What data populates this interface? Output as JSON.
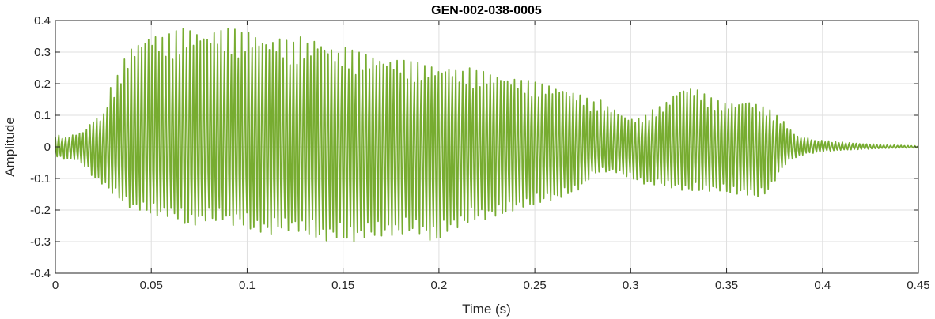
{
  "chart_data": {
    "type": "line",
    "title": "GEN-002-038-0005",
    "xlabel": "Time (s)",
    "ylabel": "Amplitude",
    "xlim": [
      0,
      0.45
    ],
    "ylim": [
      -0.4,
      0.4
    ],
    "grid": true,
    "line_color": "#77AC30",
    "xticks": [
      0,
      0.05,
      0.1,
      0.15,
      0.2,
      0.25,
      0.3,
      0.35,
      0.4,
      0.45
    ],
    "xtick_labels": [
      "0",
      "0.05",
      "0.1",
      "0.15",
      "0.2",
      "0.25",
      "0.3",
      "0.35",
      "0.4",
      "0.45"
    ],
    "yticks": [
      -0.4,
      -0.3,
      -0.2,
      -0.1,
      0,
      0.1,
      0.2,
      0.3,
      0.4
    ],
    "ytick_labels": [
      "-0.4",
      "-0.3",
      "-0.2",
      "-0.1",
      "0",
      "0.1",
      "0.2",
      "0.3",
      "0.4"
    ],
    "series": [
      {
        "x": [
          0.0,
          0.005,
          0.01,
          0.015,
          0.02,
          0.025,
          0.028,
          0.032,
          0.036,
          0.04,
          0.044,
          0.048,
          0.052,
          0.056,
          0.06,
          0.064,
          0.068,
          0.072,
          0.076,
          0.08,
          0.084,
          0.088,
          0.092,
          0.096,
          0.1,
          0.104,
          0.108,
          0.112,
          0.116,
          0.12,
          0.124,
          0.128,
          0.132,
          0.136,
          0.14,
          0.144,
          0.148,
          0.152,
          0.156,
          0.16,
          0.164,
          0.168,
          0.172,
          0.176,
          0.18,
          0.184,
          0.188,
          0.192,
          0.196,
          0.2,
          0.204,
          0.208,
          0.212,
          0.216,
          0.22,
          0.224,
          0.228,
          0.232,
          0.236,
          0.24,
          0.244,
          0.248,
          0.252,
          0.256,
          0.26,
          0.264,
          0.268,
          0.272,
          0.276,
          0.28,
          0.284,
          0.288,
          0.292,
          0.296,
          0.3,
          0.304,
          0.308,
          0.312,
          0.316,
          0.32,
          0.324,
          0.328,
          0.332,
          0.336,
          0.34,
          0.344,
          0.348,
          0.352,
          0.356,
          0.36,
          0.364,
          0.368,
          0.372,
          0.376,
          0.38,
          0.384,
          0.388,
          0.392,
          0.396,
          0.4,
          0.41,
          0.42,
          0.43,
          0.44,
          0.45
        ],
        "y_max": [
          0.04,
          0.03,
          0.04,
          0.05,
          0.09,
          0.1,
          0.18,
          0.22,
          0.28,
          0.32,
          0.34,
          0.36,
          0.36,
          0.35,
          0.36,
          0.37,
          0.38,
          0.37,
          0.37,
          0.36,
          0.38,
          0.37,
          0.38,
          0.36,
          0.37,
          0.36,
          0.35,
          0.34,
          0.35,
          0.34,
          0.33,
          0.35,
          0.33,
          0.35,
          0.33,
          0.32,
          0.3,
          0.32,
          0.3,
          0.3,
          0.29,
          0.29,
          0.28,
          0.28,
          0.28,
          0.27,
          0.27,
          0.26,
          0.26,
          0.25,
          0.26,
          0.25,
          0.24,
          0.25,
          0.24,
          0.24,
          0.23,
          0.23,
          0.22,
          0.22,
          0.21,
          0.21,
          0.2,
          0.2,
          0.19,
          0.19,
          0.18,
          0.17,
          0.16,
          0.14,
          0.15,
          0.13,
          0.12,
          0.1,
          0.09,
          0.09,
          0.1,
          0.12,
          0.13,
          0.15,
          0.18,
          0.19,
          0.19,
          0.18,
          0.16,
          0.15,
          0.14,
          0.14,
          0.14,
          0.15,
          0.14,
          0.13,
          0.12,
          0.1,
          0.08,
          0.05,
          0.03,
          0.03,
          0.02,
          0.02,
          0.015,
          0.01,
          0.008,
          0.005,
          0.003
        ],
        "y_min": [
          -0.03,
          -0.04,
          -0.04,
          -0.06,
          -0.1,
          -0.12,
          -0.14,
          -0.16,
          -0.18,
          -0.2,
          -0.2,
          -0.21,
          -0.22,
          -0.22,
          -0.22,
          -0.23,
          -0.25,
          -0.25,
          -0.24,
          -0.23,
          -0.24,
          -0.23,
          -0.25,
          -0.24,
          -0.26,
          -0.27,
          -0.27,
          -0.28,
          -0.26,
          -0.27,
          -0.26,
          -0.27,
          -0.28,
          -0.29,
          -0.3,
          -0.29,
          -0.29,
          -0.3,
          -0.3,
          -0.29,
          -0.28,
          -0.29,
          -0.28,
          -0.28,
          -0.28,
          -0.27,
          -0.27,
          -0.28,
          -0.3,
          -0.3,
          -0.27,
          -0.26,
          -0.25,
          -0.24,
          -0.23,
          -0.23,
          -0.22,
          -0.22,
          -0.21,
          -0.2,
          -0.19,
          -0.19,
          -0.18,
          -0.17,
          -0.17,
          -0.16,
          -0.15,
          -0.14,
          -0.12,
          -0.09,
          -0.08,
          -0.08,
          -0.08,
          -0.09,
          -0.1,
          -0.11,
          -0.12,
          -0.12,
          -0.12,
          -0.13,
          -0.13,
          -0.14,
          -0.14,
          -0.14,
          -0.14,
          -0.14,
          -0.14,
          -0.15,
          -0.15,
          -0.15,
          -0.16,
          -0.16,
          -0.14,
          -0.1,
          -0.06,
          -0.04,
          -0.03,
          -0.02,
          -0.02,
          -0.015,
          -0.01,
          -0.008,
          -0.005,
          -0.004,
          -0.003
        ]
      }
    ]
  }
}
